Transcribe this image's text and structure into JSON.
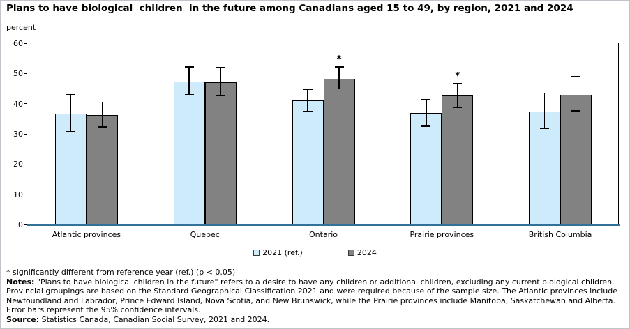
{
  "chart_data": {
    "type": "bar",
    "title": "Plans to have biological  children  in the future among Canadians aged 15 to 49, by region, 2021 and 2024",
    "ylabel": "percent",
    "xlabel": "",
    "ylim": [
      0,
      60
    ],
    "yticks": [
      0,
      10,
      20,
      30,
      40,
      50,
      60
    ],
    "grid": false,
    "legend_position": "bottom-center",
    "error_bars": "95% confidence intervals",
    "significance_marker": "*",
    "axis_line_color": "#31719b",
    "bar_border_color": "#000000",
    "categories": [
      "Atlantic provinces",
      "Quebec",
      "Ontario",
      "Prairie provinces",
      "British Columbia"
    ],
    "series": [
      {
        "name": "2021 (ref.)",
        "color": "#cdebfb",
        "values": [
          36.6,
          47.3,
          41.1,
          36.9,
          37.5
        ],
        "ci_low": [
          30.8,
          42.9,
          37.4,
          32.5,
          31.9
        ],
        "ci_high": [
          42.9,
          52.1,
          44.6,
          41.4,
          43.5
        ],
        "significant": [
          false,
          false,
          false,
          false,
          false
        ]
      },
      {
        "name": "2024",
        "color": "#828282",
        "values": [
          36.3,
          47.1,
          48.3,
          42.7,
          43.0
        ],
        "ci_low": [
          32.4,
          42.8,
          44.9,
          38.8,
          37.6
        ],
        "ci_high": [
          40.5,
          52.0,
          52.1,
          46.7,
          49.0
        ],
        "significant": [
          false,
          false,
          true,
          true,
          false
        ]
      }
    ]
  },
  "footnotes": {
    "asterisk_note": "* significantly different from reference year (ref.) (p < 0.05)",
    "notes_label": "Notes:",
    "notes_text": " \"Plans to have biological children in the future\" refers to a desire to have any children or additional children, excluding any current biological children. Provincial groupings are based on the Standard Geographical Classification 2021 and were required because of the sample size. The Atlantic provinces include Newfoundland and Labrador, Prince Edward Island, Nova Scotia, and New Brunswick, while the Prairie provinces include Manitoba, Saskatchewan and Alberta. Error bars represent the 95% confidence intervals.",
    "source_label": "Source:",
    "source_text": " Statistics Canada, Canadian Social Survey, 2021 and 2024."
  }
}
